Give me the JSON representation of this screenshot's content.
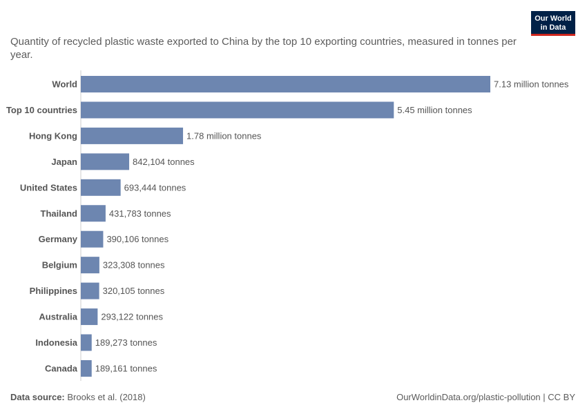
{
  "subtitle": "Quantity of recycled plastic waste exported to China by the top 10 exporting countries, measured in tonnes per year.",
  "logo": {
    "line1": "Our World",
    "line2": "in Data"
  },
  "footer": {
    "source_label": "Data source:",
    "source_text": "Brooks et al. (2018)",
    "url_text": "OurWorldinData.org/plastic-pollution | CC BY"
  },
  "colors": {
    "bar": "#6d86b0",
    "axis": "#cccccc",
    "logo_bg": "#002147",
    "logo_accent": "#ce261e"
  },
  "chart_data": {
    "type": "bar",
    "orientation": "horizontal",
    "title": "",
    "xlabel": "",
    "ylabel": "",
    "xlim": [
      0,
      7130000
    ],
    "grid": false,
    "categories": [
      "World",
      "Top 10 countries",
      "Hong Kong",
      "Japan",
      "United States",
      "Thailand",
      "Germany",
      "Belgium",
      "Philippines",
      "Australia",
      "Indonesia",
      "Canada"
    ],
    "values": [
      7130000,
      5450000,
      1780000,
      842104,
      693444,
      431783,
      390106,
      323308,
      320105,
      293122,
      189273,
      189161
    ],
    "value_labels": [
      "7.13 million tonnes",
      "5.45 million tonnes",
      "1.78 million tonnes",
      "842,104 tonnes",
      "693,444 tonnes",
      "431,783 tonnes",
      "390,106 tonnes",
      "323,308 tonnes",
      "320,105 tonnes",
      "293,122 tonnes",
      "189,273 tonnes",
      "189,161 tonnes"
    ]
  }
}
